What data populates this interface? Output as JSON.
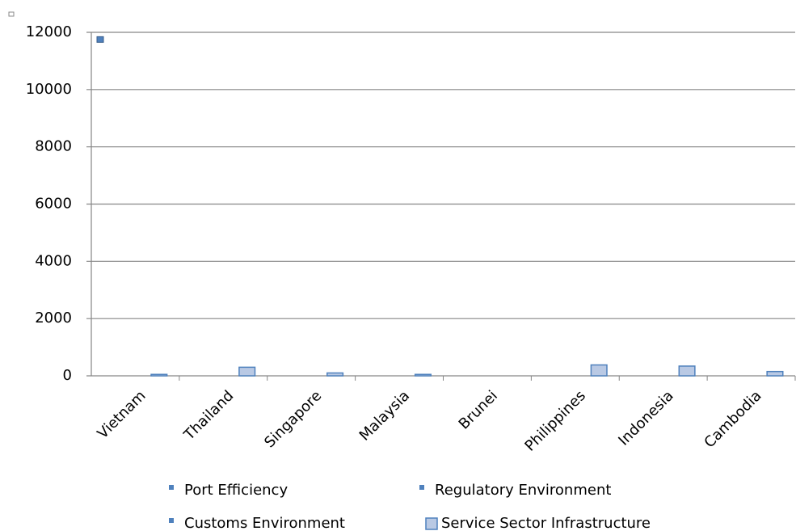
{
  "chart_data": {
    "type": "bar",
    "categories": [
      "Vietnam",
      "Thailand",
      "Singapore",
      "Malaysia",
      "Brunei",
      "Philippines",
      "Indonesia",
      "Cambodia"
    ],
    "series": [
      {
        "name": "Port Efficiency",
        "type": "scatter",
        "color": "#4f81bd",
        "values": [
          11750,
          null,
          null,
          null,
          null,
          null,
          null,
          null
        ]
      },
      {
        "name": "Regulatory Environment",
        "type": "scatter",
        "color": "#4f81bd",
        "values": [
          null,
          null,
          null,
          null,
          null,
          null,
          null,
          null
        ]
      },
      {
        "name": "Customs Environment",
        "type": "scatter",
        "color": "#4f81bd",
        "values": [
          null,
          null,
          null,
          null,
          null,
          null,
          null,
          null
        ]
      },
      {
        "name": "Service Sector Infrastructure",
        "type": "bar",
        "color": "#b9c9e4",
        "values": [
          50,
          300,
          100,
          50,
          0,
          380,
          340,
          150
        ]
      }
    ],
    "ylim": [
      0,
      12000
    ],
    "yticks": [
      0,
      2000,
      4000,
      6000,
      8000,
      10000,
      12000
    ],
    "grid": true
  }
}
